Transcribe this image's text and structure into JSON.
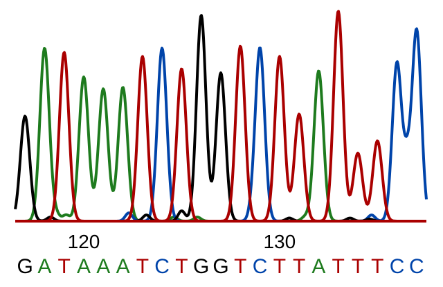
{
  "chart_data": {
    "type": "line",
    "title": "",
    "xlabel": "",
    "ylabel": "",
    "grid": false,
    "legend": "none",
    "xlim": [
      116.5,
      137.5
    ],
    "ylim": [
      0,
      1
    ],
    "x_ticks": [
      120,
      130
    ],
    "tick_labels": [
      "120",
      "130"
    ],
    "series": [
      {
        "base": "G",
        "color": "#1e7b1e",
        "peaks": [
          [
            118,
            0.84
          ],
          [
            120,
            0.7
          ],
          [
            121,
            0.64
          ],
          [
            122,
            0.65
          ],
          [
            132,
            0.73
          ],
          [
            113.4,
            0.01
          ],
          [
            120.6,
            0.01
          ]
        ],
        "noise": [
          [
            118.6,
            0.03
          ],
          [
            119.1,
            0.03
          ],
          [
            124.6,
            0.02
          ],
          [
            125.8,
            0.02
          ],
          [
            131.3,
            0.02
          ]
        ]
      },
      {
        "base": "A",
        "color": "#aa0000",
        "peaks": [
          [
            119,
            0.82
          ],
          [
            123,
            0.8
          ],
          [
            125,
            0.74
          ],
          [
            128,
            0.85
          ],
          [
            130,
            0.8
          ],
          [
            131,
            0.52
          ],
          [
            133,
            1.02
          ],
          [
            134,
            0.33
          ],
          [
            135,
            0.39
          ]
        ]
      },
      {
        "base": "T",
        "color": "#0044aa",
        "peaks": [
          [
            124,
            0.84
          ],
          [
            129,
            0.84
          ],
          [
            136,
            0.77
          ],
          [
            137,
            0.93
          ]
        ],
        "noise": [
          [
            122.3,
            0.04
          ],
          [
            128.6,
            0.03
          ],
          [
            134.7,
            0.03
          ],
          [
            136.5,
            0.22
          ]
        ]
      },
      {
        "base": "C",
        "color": "#000000",
        "peaks": [
          [
            117,
            0.51
          ],
          [
            126,
            1.0
          ],
          [
            127,
            0.72
          ]
        ],
        "noise": [
          [
            118.3,
            0.02
          ],
          [
            123.2,
            0.03
          ],
          [
            125.0,
            0.05
          ],
          [
            130.5,
            0.015
          ],
          [
            133.6,
            0.015
          ],
          [
            134.6,
            0.01
          ]
        ]
      }
    ],
    "sequence": [
      {
        "pos": 117,
        "base": "G",
        "color": "#000000"
      },
      {
        "pos": 118,
        "base": "A",
        "color": "#1e7b1e"
      },
      {
        "pos": 119,
        "base": "T",
        "color": "#aa0000"
      },
      {
        "pos": 120,
        "base": "A",
        "color": "#1e7b1e"
      },
      {
        "pos": 121,
        "base": "A",
        "color": "#1e7b1e"
      },
      {
        "pos": 122,
        "base": "A",
        "color": "#1e7b1e"
      },
      {
        "pos": 123,
        "base": "T",
        "color": "#aa0000"
      },
      {
        "pos": 124,
        "base": "C",
        "color": "#0044aa"
      },
      {
        "pos": 125,
        "base": "T",
        "color": "#aa0000"
      },
      {
        "pos": 126,
        "base": "G",
        "color": "#000000"
      },
      {
        "pos": 127,
        "base": "G",
        "color": "#000000"
      },
      {
        "pos": 128,
        "base": "T",
        "color": "#aa0000"
      },
      {
        "pos": 129,
        "base": "C",
        "color": "#0044aa"
      },
      {
        "pos": 130,
        "base": "T",
        "color": "#aa0000"
      },
      {
        "pos": 131,
        "base": "T",
        "color": "#aa0000"
      },
      {
        "pos": 132,
        "base": "A",
        "color": "#1e7b1e"
      },
      {
        "pos": 133,
        "base": "T",
        "color": "#aa0000"
      },
      {
        "pos": 134,
        "base": "T",
        "color": "#aa0000"
      },
      {
        "pos": 135,
        "base": "T",
        "color": "#aa0000"
      },
      {
        "pos": 136,
        "base": "C",
        "color": "#0044aa"
      },
      {
        "pos": 137,
        "base": "C",
        "color": "#0044aa"
      }
    ]
  }
}
